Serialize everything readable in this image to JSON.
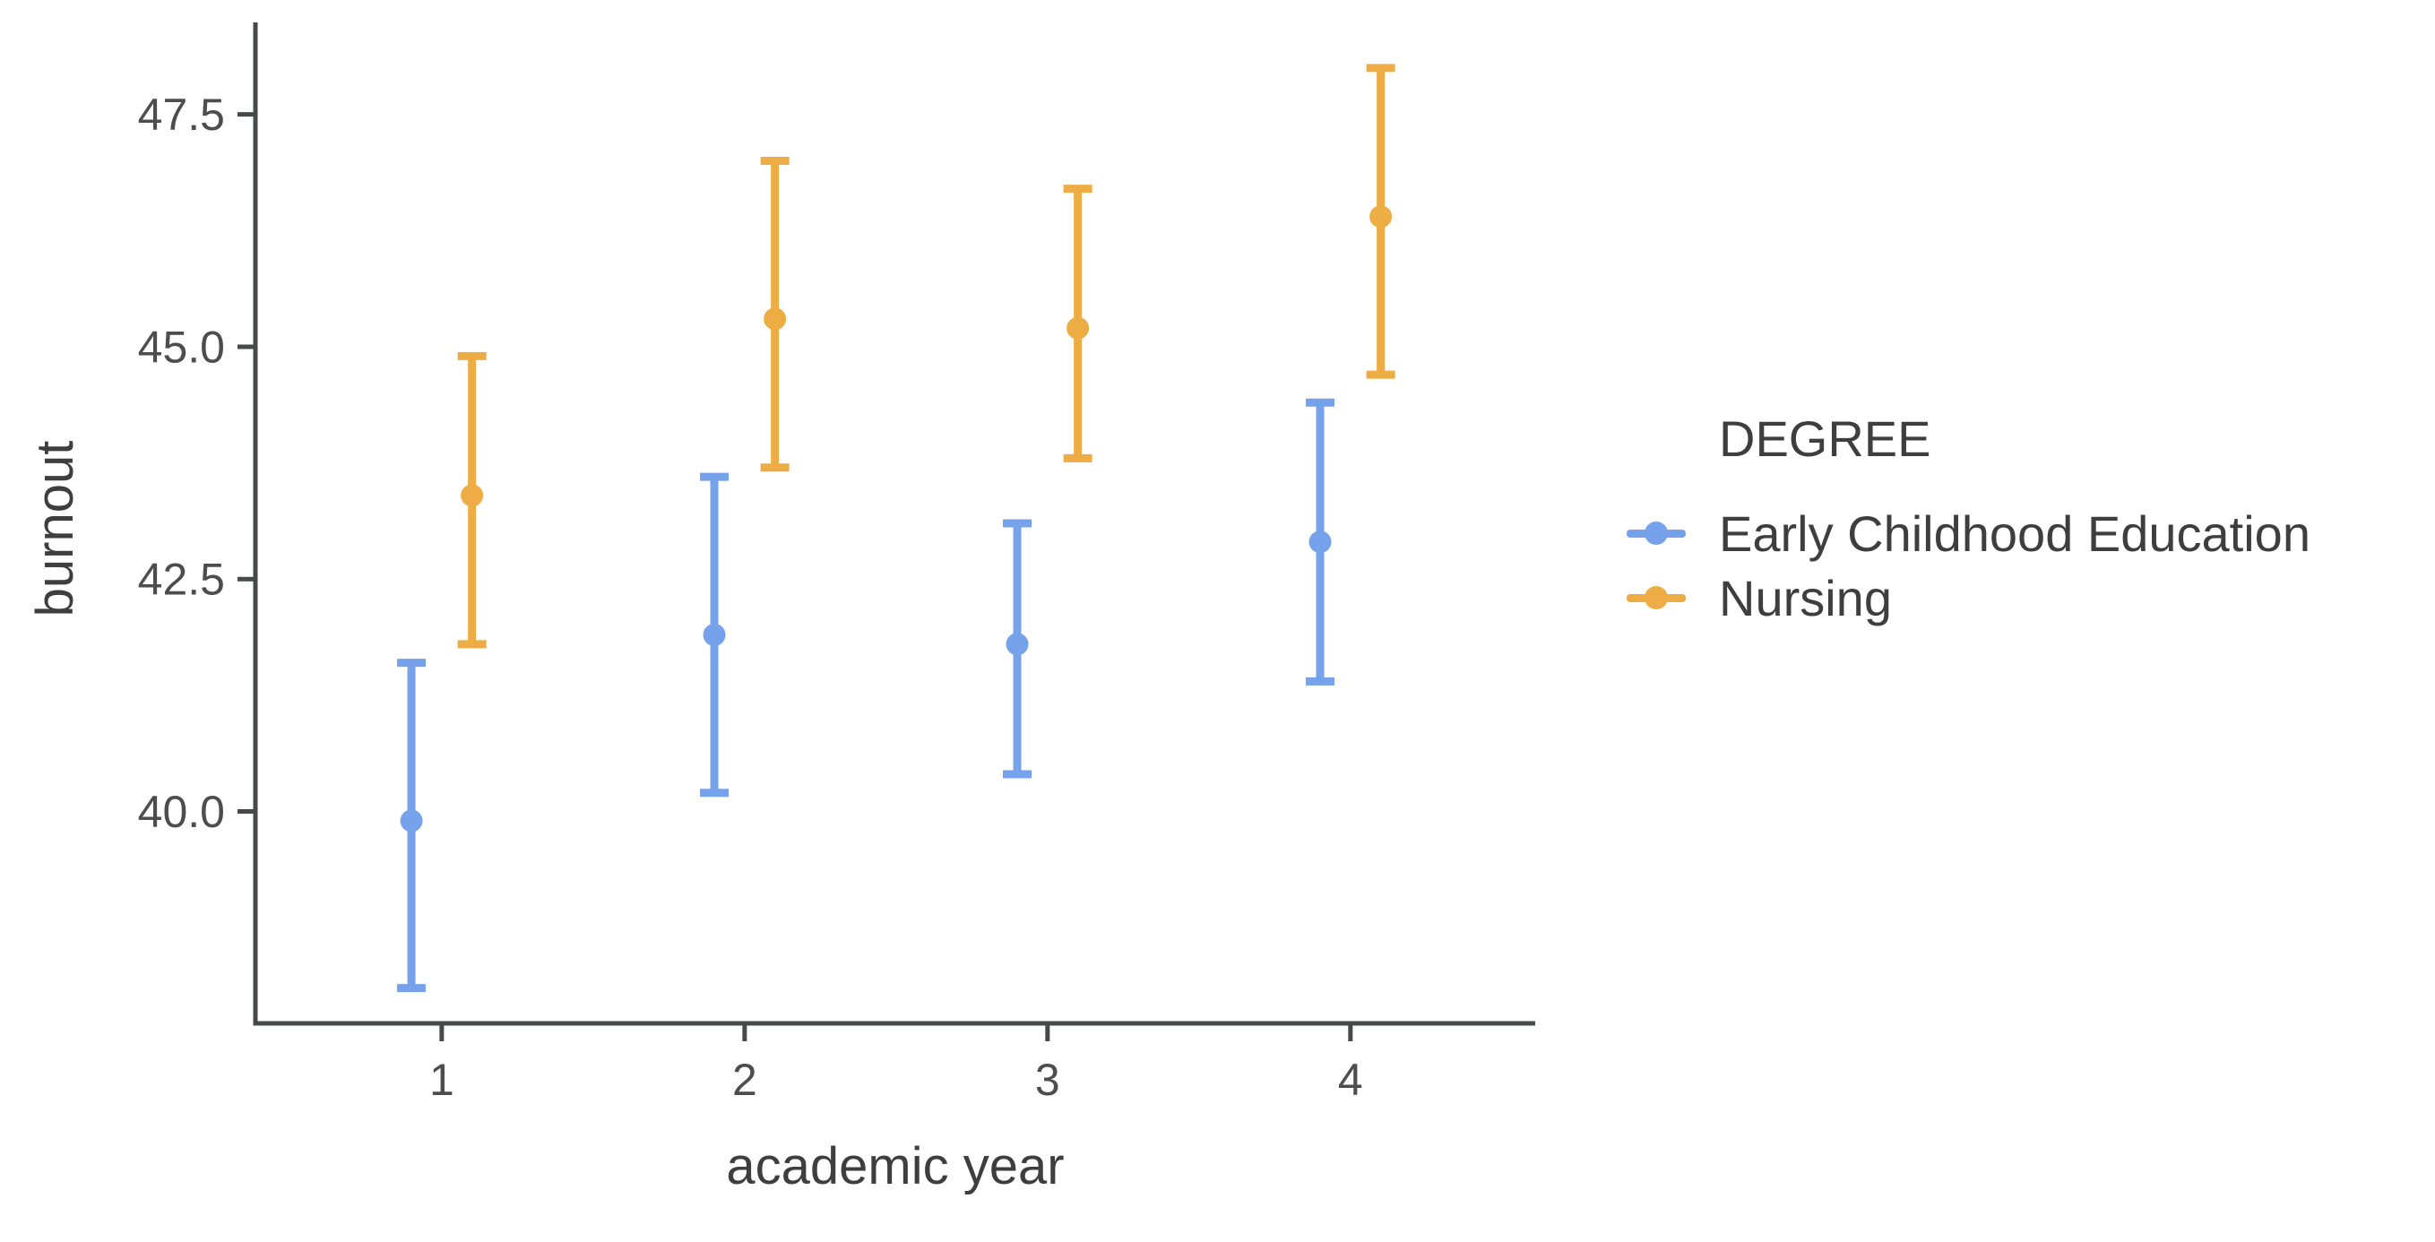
{
  "figure": {
    "background": "#FFFFFF"
  },
  "axis": {
    "line_color": "#47484a",
    "tick_label_color": "#4d4d4d",
    "title_color": "#3e3e3e"
  },
  "chart_data": {
    "type": "pointrange",
    "title": "",
    "xlabel": "academic year",
    "ylabel": "burnout",
    "xlim": [
      0.385,
      4.61
    ],
    "ylim": [
      37.72,
      48.49
    ],
    "grid": "off",
    "legend_position": "right",
    "x_ticks": [
      {
        "value": 1,
        "label": "1"
      },
      {
        "value": 2,
        "label": "2"
      },
      {
        "value": 3,
        "label": "3"
      },
      {
        "value": 4,
        "label": "4"
      }
    ],
    "y_ticks": [
      {
        "value": 40.0,
        "label": "40.0"
      },
      {
        "value": 42.5,
        "label": "42.5"
      },
      {
        "value": 45.0,
        "label": "45.0"
      },
      {
        "value": 47.5,
        "label": "47.5"
      }
    ],
    "dodge_offset": 0.1,
    "series": [
      {
        "name": "Early Childhood Education",
        "color": "#76a1eb",
        "offset": -0.1,
        "points": [
          {
            "x": 1,
            "y": 39.9,
            "ymin": 38.1,
            "ymax": 41.6
          },
          {
            "x": 2,
            "y": 41.9,
            "ymin": 40.2,
            "ymax": 43.6
          },
          {
            "x": 3,
            "y": 41.8,
            "ymin": 40.4,
            "ymax": 43.1
          },
          {
            "x": 4,
            "y": 42.9,
            "ymin": 41.4,
            "ymax": 44.4
          }
        ]
      },
      {
        "name": "Nursing",
        "color": "#edad44",
        "offset": 0.1,
        "points": [
          {
            "x": 1,
            "y": 43.4,
            "ymin": 41.8,
            "ymax": 44.9
          },
          {
            "x": 2,
            "y": 45.3,
            "ymin": 43.7,
            "ymax": 47.0
          },
          {
            "x": 3,
            "y": 45.2,
            "ymin": 43.8,
            "ymax": 46.7
          },
          {
            "x": 4,
            "y": 46.4,
            "ymin": 44.7,
            "ymax": 48.0
          }
        ]
      }
    ]
  },
  "legend": {
    "title": "DEGREE",
    "items": [
      {
        "label": "Early Childhood Education",
        "color": "#76a1eb"
      },
      {
        "label": "Nursing",
        "color": "#edad44"
      }
    ]
  }
}
